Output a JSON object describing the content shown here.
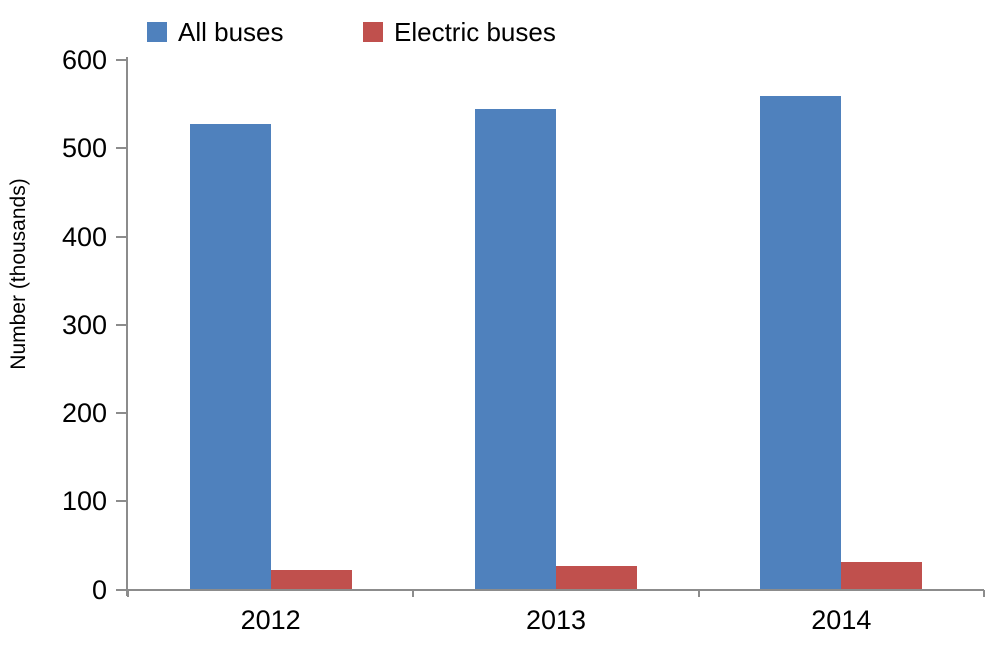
{
  "chart_data": {
    "type": "bar",
    "title": "",
    "xlabel": "",
    "ylabel": "Number (thousands)",
    "categories": [
      "2012",
      "2013",
      "2014"
    ],
    "series": [
      {
        "name": "All buses",
        "color": "#4F81BD",
        "values": [
          528,
          544,
          559
        ]
      },
      {
        "name": "Electric buses",
        "color": "#C0504D",
        "values": [
          22,
          27,
          31
        ]
      }
    ],
    "ylim": [
      0,
      600
    ],
    "ytick_interval": 100,
    "ytick_labels": [
      "0",
      "100",
      "200",
      "300",
      "400",
      "500",
      "600"
    ],
    "legend_position": "top",
    "grid": false,
    "axis_color": "#8C8C8C",
    "text_color": "#000000",
    "background_color": "#FFFFFF"
  }
}
